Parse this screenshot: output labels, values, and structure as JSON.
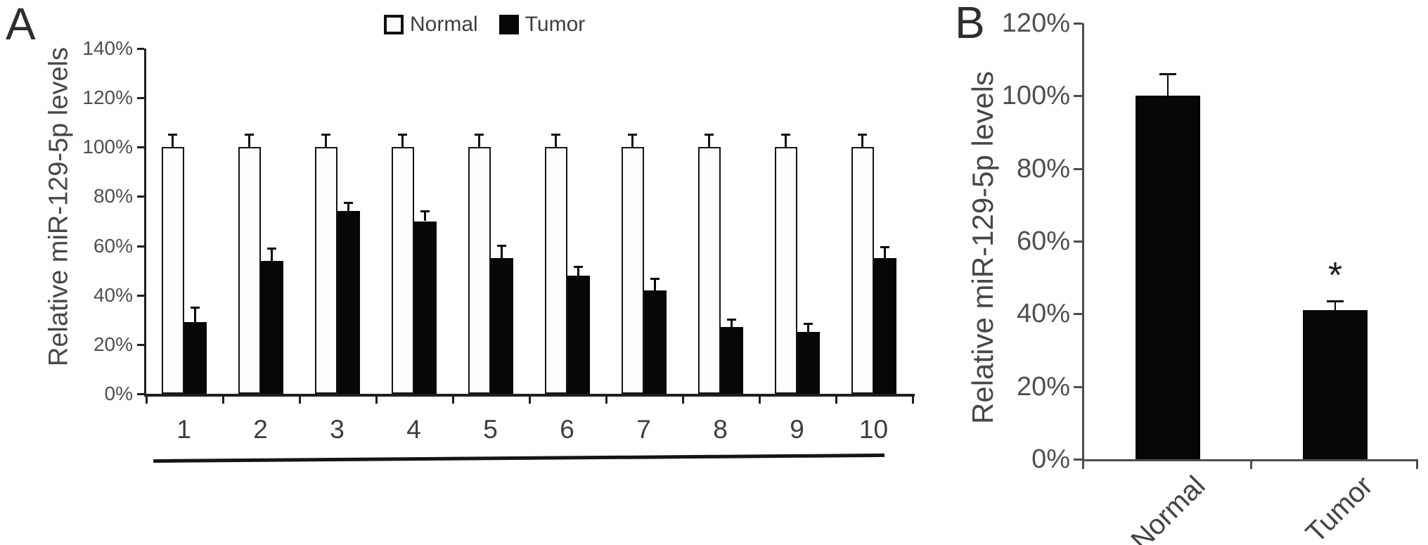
{
  "colors": {
    "axis_dark": "#1f1f1f",
    "axis_gray": "#4d4d4d",
    "tick_text": "#4f4f4f",
    "category_text": "#3d3d3d",
    "bar_black": "#070707",
    "bar_white_fill": "#fdfdfd",
    "bar_outline": "#141414",
    "background": "#ffffff"
  },
  "chart_data": [
    {
      "panel": "A",
      "type": "bar",
      "title": "",
      "ylabel": "Relative miR-129-5p levels",
      "xlabel": "",
      "ylim": [
        0,
        140
      ],
      "yticks": [
        0,
        20,
        40,
        60,
        80,
        100,
        120,
        140
      ],
      "ytick_labels": [
        "0%",
        "20%",
        "40%",
        "60%",
        "80%",
        "100%",
        "120%",
        "140%"
      ],
      "grid": false,
      "legend_position": "top",
      "category_underline": true,
      "categories": [
        "1",
        "2",
        "3",
        "4",
        "5",
        "6",
        "7",
        "8",
        "9",
        "10"
      ],
      "series": [
        {
          "name": "Normal",
          "values": [
            100,
            100,
            100,
            100,
            100,
            100,
            100,
            100,
            100,
            100
          ],
          "errors": [
            5,
            5,
            5,
            5,
            5,
            5,
            5,
            5,
            5,
            5
          ],
          "style": "open"
        },
        {
          "name": "Tumor",
          "values": [
            29,
            54,
            74,
            70,
            55,
            48,
            42,
            27,
            25,
            55
          ],
          "errors": [
            6,
            5,
            3.5,
            4,
            5,
            3.5,
            4.5,
            3,
            3.5,
            4.5
          ],
          "style": "solid"
        }
      ]
    },
    {
      "panel": "B",
      "type": "bar",
      "title": "",
      "ylabel": "Relative miR-129-5p levels",
      "xlabel": "",
      "ylim": [
        0,
        120
      ],
      "yticks": [
        0,
        20,
        40,
        60,
        80,
        100,
        120
      ],
      "ytick_labels": [
        "0%",
        "20%",
        "40%",
        "60%",
        "80%",
        "100%",
        "120%"
      ],
      "grid": false,
      "xtick_rotation": -45,
      "categories": [
        "Normal",
        "Tumor"
      ],
      "series": [
        {
          "values": [
            100,
            41
          ],
          "errors": [
            6,
            2.5
          ],
          "style": "solid"
        }
      ],
      "annotations": [
        {
          "text": "*",
          "category_index": 1
        }
      ]
    }
  ]
}
